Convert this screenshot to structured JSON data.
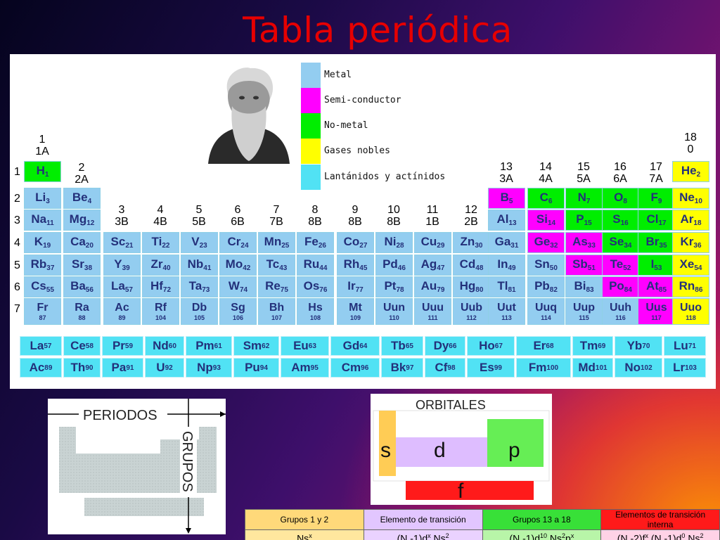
{
  "title": "Tabla periódica",
  "legend": [
    {
      "label": "Metal",
      "color": "#93cdf0"
    },
    {
      "label": "Semi-conductor",
      "color": "#ff00ff"
    },
    {
      "label": "No-metal",
      "color": "#00ee00"
    },
    {
      "label": "Gases nobles",
      "color": "#ffff00"
    },
    {
      "label": "Lantánidos y actínidos",
      "color": "#51e2f4"
    }
  ],
  "group_headers": [
    "1\n1A",
    "2\n2A",
    "3\n3B",
    "4\n4B",
    "5\n5B",
    "6\n6B",
    "7\n7B",
    "8\n8B",
    "9\n8B",
    "10\n8B",
    "11\n1B",
    "12\n2B",
    "13\n3A",
    "14\n4A",
    "15\n5A",
    "16\n6A",
    "17\n7A",
    "18\n0"
  ],
  "periods": [
    "1",
    "2",
    "3",
    "4",
    "5",
    "6",
    "7"
  ],
  "elements": [
    [
      "H",
      "1",
      "nonmetal",
      1,
      1
    ],
    [
      "He",
      "2",
      "noble",
      1,
      18
    ],
    [
      "Li",
      "3",
      "metal",
      2,
      1
    ],
    [
      "Be",
      "4",
      "metal",
      2,
      2
    ],
    [
      "B",
      "5",
      "semi",
      2,
      13
    ],
    [
      "C",
      "6",
      "nonmetal",
      2,
      14
    ],
    [
      "N",
      "7",
      "nonmetal",
      2,
      15
    ],
    [
      "O",
      "8",
      "nonmetal",
      2,
      16
    ],
    [
      "F",
      "9",
      "nonmetal",
      2,
      17
    ],
    [
      "Ne",
      "10",
      "noble",
      2,
      18
    ],
    [
      "Na",
      "11",
      "metal",
      3,
      1
    ],
    [
      "Mg",
      "12",
      "metal",
      3,
      2
    ],
    [
      "Al",
      "13",
      "metal",
      3,
      13
    ],
    [
      "Si",
      "14",
      "semi",
      3,
      14
    ],
    [
      "P",
      "15",
      "nonmetal",
      3,
      15
    ],
    [
      "S",
      "16",
      "nonmetal",
      3,
      16
    ],
    [
      "Cl",
      "17",
      "nonmetal",
      3,
      17
    ],
    [
      "Ar",
      "18",
      "noble",
      3,
      18
    ],
    [
      "K",
      "19",
      "metal",
      4,
      1
    ],
    [
      "Ca",
      "20",
      "metal",
      4,
      2
    ],
    [
      "Sc",
      "21",
      "metal",
      4,
      3
    ],
    [
      "Ti",
      "22",
      "metal",
      4,
      4
    ],
    [
      "V",
      "23",
      "metal",
      4,
      5
    ],
    [
      "Cr",
      "24",
      "metal",
      4,
      6
    ],
    [
      "Mn",
      "25",
      "metal",
      4,
      7
    ],
    [
      "Fe",
      "26",
      "metal",
      4,
      8
    ],
    [
      "Co",
      "27",
      "metal",
      4,
      9
    ],
    [
      "Ni",
      "28",
      "metal",
      4,
      10
    ],
    [
      "Cu",
      "29",
      "metal",
      4,
      11
    ],
    [
      "Zn",
      "30",
      "metal",
      4,
      12
    ],
    [
      "Ga",
      "31",
      "metal",
      4,
      13
    ],
    [
      "Ge",
      "32",
      "semi",
      4,
      14
    ],
    [
      "As",
      "33",
      "semi",
      4,
      15
    ],
    [
      "Se",
      "34",
      "nonmetal",
      4,
      16
    ],
    [
      "Br",
      "35",
      "nonmetal",
      4,
      17
    ],
    [
      "Kr",
      "36",
      "noble",
      4,
      18
    ],
    [
      "Rb",
      "37",
      "metal",
      5,
      1
    ],
    [
      "Sr",
      "38",
      "metal",
      5,
      2
    ],
    [
      "Y",
      "39",
      "metal",
      5,
      3
    ],
    [
      "Zr",
      "40",
      "metal",
      5,
      4
    ],
    [
      "Nb",
      "41",
      "metal",
      5,
      5
    ],
    [
      "Mo",
      "42",
      "metal",
      5,
      6
    ],
    [
      "Tc",
      "43",
      "metal",
      5,
      7
    ],
    [
      "Ru",
      "44",
      "metal",
      5,
      8
    ],
    [
      "Rh",
      "45",
      "metal",
      5,
      9
    ],
    [
      "Pd",
      "46",
      "metal",
      5,
      10
    ],
    [
      "Ag",
      "47",
      "metal",
      5,
      11
    ],
    [
      "Cd",
      "48",
      "metal",
      5,
      12
    ],
    [
      "In",
      "49",
      "metal",
      5,
      13
    ],
    [
      "Sn",
      "50",
      "metal",
      5,
      14
    ],
    [
      "Sb",
      "51",
      "semi",
      5,
      15
    ],
    [
      "Te",
      "52",
      "semi",
      5,
      16
    ],
    [
      "I",
      "53",
      "nonmetal",
      5,
      17
    ],
    [
      "Xe",
      "54",
      "noble",
      5,
      18
    ],
    [
      "Cs",
      "55",
      "metal",
      6,
      1
    ],
    [
      "Ba",
      "56",
      "metal",
      6,
      2
    ],
    [
      "La",
      "57",
      "metal",
      6,
      3
    ],
    [
      "Hf",
      "72",
      "metal",
      6,
      4
    ],
    [
      "Ta",
      "73",
      "metal",
      6,
      5
    ],
    [
      "W",
      "74",
      "metal",
      6,
      6
    ],
    [
      "Re",
      "75",
      "metal",
      6,
      7
    ],
    [
      "Os",
      "76",
      "metal",
      6,
      8
    ],
    [
      "Ir",
      "77",
      "metal",
      6,
      9
    ],
    [
      "Pt",
      "78",
      "metal",
      6,
      10
    ],
    [
      "Au",
      "79",
      "metal",
      6,
      11
    ],
    [
      "Hg",
      "80",
      "metal",
      6,
      12
    ],
    [
      "Tl",
      "81",
      "metal",
      6,
      13
    ],
    [
      "Pb",
      "82",
      "metal",
      6,
      14
    ],
    [
      "Bi",
      "83",
      "metal",
      6,
      15
    ],
    [
      "Po",
      "84",
      "semi",
      6,
      16
    ],
    [
      "At",
      "85",
      "semi",
      6,
      17
    ],
    [
      "Rn",
      "86",
      "noble",
      6,
      18
    ],
    [
      "Fr",
      "87",
      "metal",
      7,
      1
    ],
    [
      "Ra",
      "88",
      "metal",
      7,
      2
    ],
    [
      "Ac",
      "89",
      "metal",
      7,
      3
    ],
    [
      "Rf",
      "104",
      "metal",
      7,
      4
    ],
    [
      "Db",
      "105",
      "metal",
      7,
      5
    ],
    [
      "Sg",
      "106",
      "metal",
      7,
      6
    ],
    [
      "Bh",
      "107",
      "metal",
      7,
      7
    ],
    [
      "Hs",
      "108",
      "metal",
      7,
      8
    ],
    [
      "Mt",
      "109",
      "metal",
      7,
      9
    ],
    [
      "Uun",
      "110",
      "metal",
      7,
      10
    ],
    [
      "Uuu",
      "111",
      "metal",
      7,
      11
    ],
    [
      "Uub",
      "112",
      "metal",
      7,
      12
    ],
    [
      "Uut",
      "113",
      "metal",
      7,
      13
    ],
    [
      "Uuq",
      "114",
      "metal",
      7,
      14
    ],
    [
      "Uup",
      "115",
      "metal",
      7,
      15
    ],
    [
      "Uuh",
      "116",
      "metal",
      7,
      16
    ],
    [
      "Uus",
      "117",
      "semi",
      7,
      17
    ],
    [
      "Uuo",
      "118",
      "noble",
      7,
      18
    ]
  ],
  "lanthanides": [
    [
      "La",
      "57"
    ],
    [
      "Ce",
      "58"
    ],
    [
      "Pr",
      "59"
    ],
    [
      "Nd",
      "60"
    ],
    [
      "Pm",
      "61"
    ],
    [
      "Sm",
      "62"
    ],
    [
      "Eu",
      "63"
    ],
    [
      "Gd",
      "64"
    ],
    [
      "Tb",
      "65"
    ],
    [
      "Dy",
      "66"
    ],
    [
      "Ho",
      "67"
    ],
    [
      "Er",
      "68"
    ],
    [
      "Tm",
      "69"
    ],
    [
      "Yb",
      "70"
    ],
    [
      "Lu",
      "71"
    ]
  ],
  "actinides": [
    [
      "Ac",
      "89"
    ],
    [
      "Th",
      "90"
    ],
    [
      "Pa",
      "91"
    ],
    [
      "U",
      "92"
    ],
    [
      "Np",
      "93"
    ],
    [
      "Pu",
      "94"
    ],
    [
      "Am",
      "95"
    ],
    [
      "Cm",
      "96"
    ],
    [
      "Bk",
      "97"
    ],
    [
      "Cf",
      "98"
    ],
    [
      "Es",
      "99"
    ],
    [
      "Fm",
      "100"
    ],
    [
      "Md",
      "101"
    ],
    [
      "No",
      "102"
    ],
    [
      "Lr",
      "103"
    ]
  ],
  "periods_box": {
    "periods_label": "PERIODOS",
    "groups_label": "GRUPOS"
  },
  "orbitals_box": {
    "title": "ORBITALES",
    "s": "s",
    "d": "d",
    "p": "p",
    "f": "f"
  },
  "config_table": {
    "headers": [
      "Grupos 1 y 2",
      "Elemento de transición",
      "Grupos 13 a 18",
      "Elementos de transición interna"
    ],
    "header_colors": [
      "#ffd97a",
      "#e2c6ff",
      "#38e038",
      "#ff1a1a"
    ],
    "row_colors": [
      "#ffe79e",
      "#ead2ff",
      "#b8f5a8",
      "#ffd2e6"
    ],
    "formulas": [
      [
        {
          "t": "Ns"
        },
        {
          "t": "x",
          "sup": true
        }
      ],
      [
        {
          "t": "(N -1)d"
        },
        {
          "t": "x",
          "sup": true
        },
        {
          "t": " Ns"
        },
        {
          "t": "2",
          "sup": true
        }
      ],
      [
        {
          "t": "(N -1)d"
        },
        {
          "t": "10",
          "sup": true
        },
        {
          "t": " Ns"
        },
        {
          "t": "2",
          "sup": true
        },
        {
          "t": "p"
        },
        {
          "t": "x",
          "sup": true
        }
      ],
      [
        {
          "t": "(N -2)f"
        },
        {
          "t": "x",
          "sup": true
        },
        {
          "t": " (N -1)d"
        },
        {
          "t": "0",
          "sup": true
        },
        {
          "t": " Ns"
        },
        {
          "t": "2",
          "sup": true
        }
      ]
    ]
  }
}
